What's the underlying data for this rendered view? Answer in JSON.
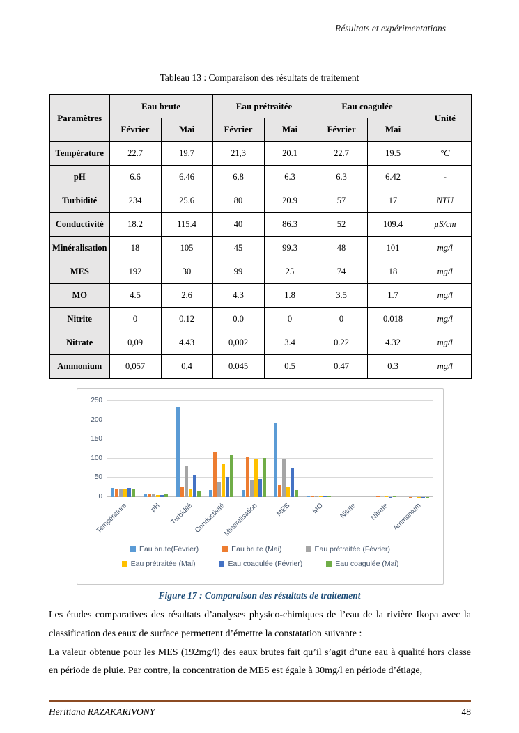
{
  "header": {
    "running_title": "Résultats et expérimentations"
  },
  "table": {
    "caption": "Tableau 13 : Comparaison des résultats de traitement",
    "param_header": "Paramètres",
    "unit_header": "Unité",
    "col_groups": [
      "Eau brute",
      "Eau prétraitée",
      "Eau coagulée"
    ],
    "sub_headers": [
      "Février",
      "Mai"
    ],
    "rows": [
      {
        "param": "Température",
        "values": [
          "22.7",
          "19.7",
          "21,3",
          "20.1",
          "22.7",
          "19.5"
        ],
        "unit": "°C"
      },
      {
        "param": "pH",
        "values": [
          "6.6",
          "6.46",
          "6,8",
          "6.3",
          "6.3",
          "6.42"
        ],
        "unit": "-"
      },
      {
        "param": "Turbidité",
        "values": [
          "234",
          "25.6",
          "80",
          "20.9",
          "57",
          "17"
        ],
        "unit": "NTU"
      },
      {
        "param": "Conductivité",
        "values": [
          "18.2",
          "115.4",
          "40",
          "86.3",
          "52",
          "109.4"
        ],
        "unit": "µS/cm"
      },
      {
        "param": "Minéralisation",
        "values": [
          "18",
          "105",
          "45",
          "99.3",
          "48",
          "101"
        ],
        "unit": "mg/l"
      },
      {
        "param": "MES",
        "values": [
          "192",
          "30",
          "99",
          "25",
          "74",
          "18"
        ],
        "unit": "mg/l"
      },
      {
        "param": "MO",
        "values": [
          "4.5",
          "2.6",
          "4.3",
          "1.8",
          "3.5",
          "1.7"
        ],
        "unit": "mg/l"
      },
      {
        "param": "Nitrite",
        "values": [
          "0",
          "0.12",
          "0.0",
          "0",
          "0",
          "0.018"
        ],
        "unit": "mg/l"
      },
      {
        "param": "Nitrate",
        "values": [
          "0,09",
          "4.43",
          "0,002",
          "3.4",
          "0.22",
          "4.32"
        ],
        "unit": "mg/l"
      },
      {
        "param": "Ammonium",
        "values": [
          "0,057",
          "0,4",
          "0.045",
          "0.5",
          "0.47",
          "0.3"
        ],
        "unit": "mg/l"
      }
    ]
  },
  "chart_data": {
    "type": "bar",
    "title": "",
    "categories": [
      "Température",
      "pH",
      "Turbidité",
      "Conductivité",
      "Minéralisation",
      "MES",
      "MO",
      "Nitrite",
      "Nitrate",
      "Ammonium"
    ],
    "series": [
      {
        "name": "Eau brute(Février)",
        "color": "#5B9BD5",
        "values": [
          22.7,
          6.6,
          234,
          18.2,
          18,
          192,
          4.5,
          0,
          0.09,
          0.057
        ]
      },
      {
        "name": "Eau brute (Mai)",
        "color": "#ED7D31",
        "values": [
          19.7,
          6.46,
          25.6,
          115.4,
          105,
          30,
          2.6,
          0.12,
          4.43,
          0.4
        ]
      },
      {
        "name": "Eau prétraitée (Février)",
        "color": "#A5A5A5",
        "values": [
          21.3,
          6.8,
          80,
          40,
          45,
          99,
          4.3,
          0,
          0.002,
          0.045
        ]
      },
      {
        "name": "Eau prétraitée (Mai)",
        "color": "#FFC000",
        "values": [
          20.1,
          6.3,
          20.9,
          86.3,
          99.3,
          25,
          1.8,
          0,
          3.4,
          0.5
        ]
      },
      {
        "name": "Eau coagulée (Février)",
        "color": "#4472C4",
        "values": [
          22.7,
          6.3,
          57,
          52,
          48,
          74,
          3.5,
          0,
          0.22,
          0.47
        ]
      },
      {
        "name": "Eau coagulée (Mai)",
        "color": "#70AD47",
        "values": [
          19.5,
          6.42,
          17,
          109.4,
          101,
          18,
          1.7,
          0.018,
          4.32,
          0.3
        ]
      }
    ],
    "xlabel": "",
    "ylabel": "",
    "ylim": [
      0,
      250
    ],
    "ytick_step": 50,
    "grid": true,
    "legend_position": "bottom",
    "legend_items_per_row": 3,
    "axis_label_color": "#44546A",
    "gridline_color": "#D9D9D9"
  },
  "figure": {
    "caption": "Figure 17 : Comparaison des résultats de traitement"
  },
  "paragraphs": [
    "Les études comparatives des résultats d’analyses physico-chimiques de l’eau de la rivière Ikopa avec la classification des eaux de surface permettent d’émettre la constatation suivante :",
    "La valeur obtenue pour les MES (192mg/l) des eaux brutes fait qu’il s’agit d’une eau à qualité hors classe en période de pluie. Par contre, la concentration de MES est égale à 30mg/l en période d’étiage,"
  ],
  "footer": {
    "author": "Heritiana RAZAKARIVONY",
    "page_number": "48",
    "rule_color": "#8C4B23"
  }
}
